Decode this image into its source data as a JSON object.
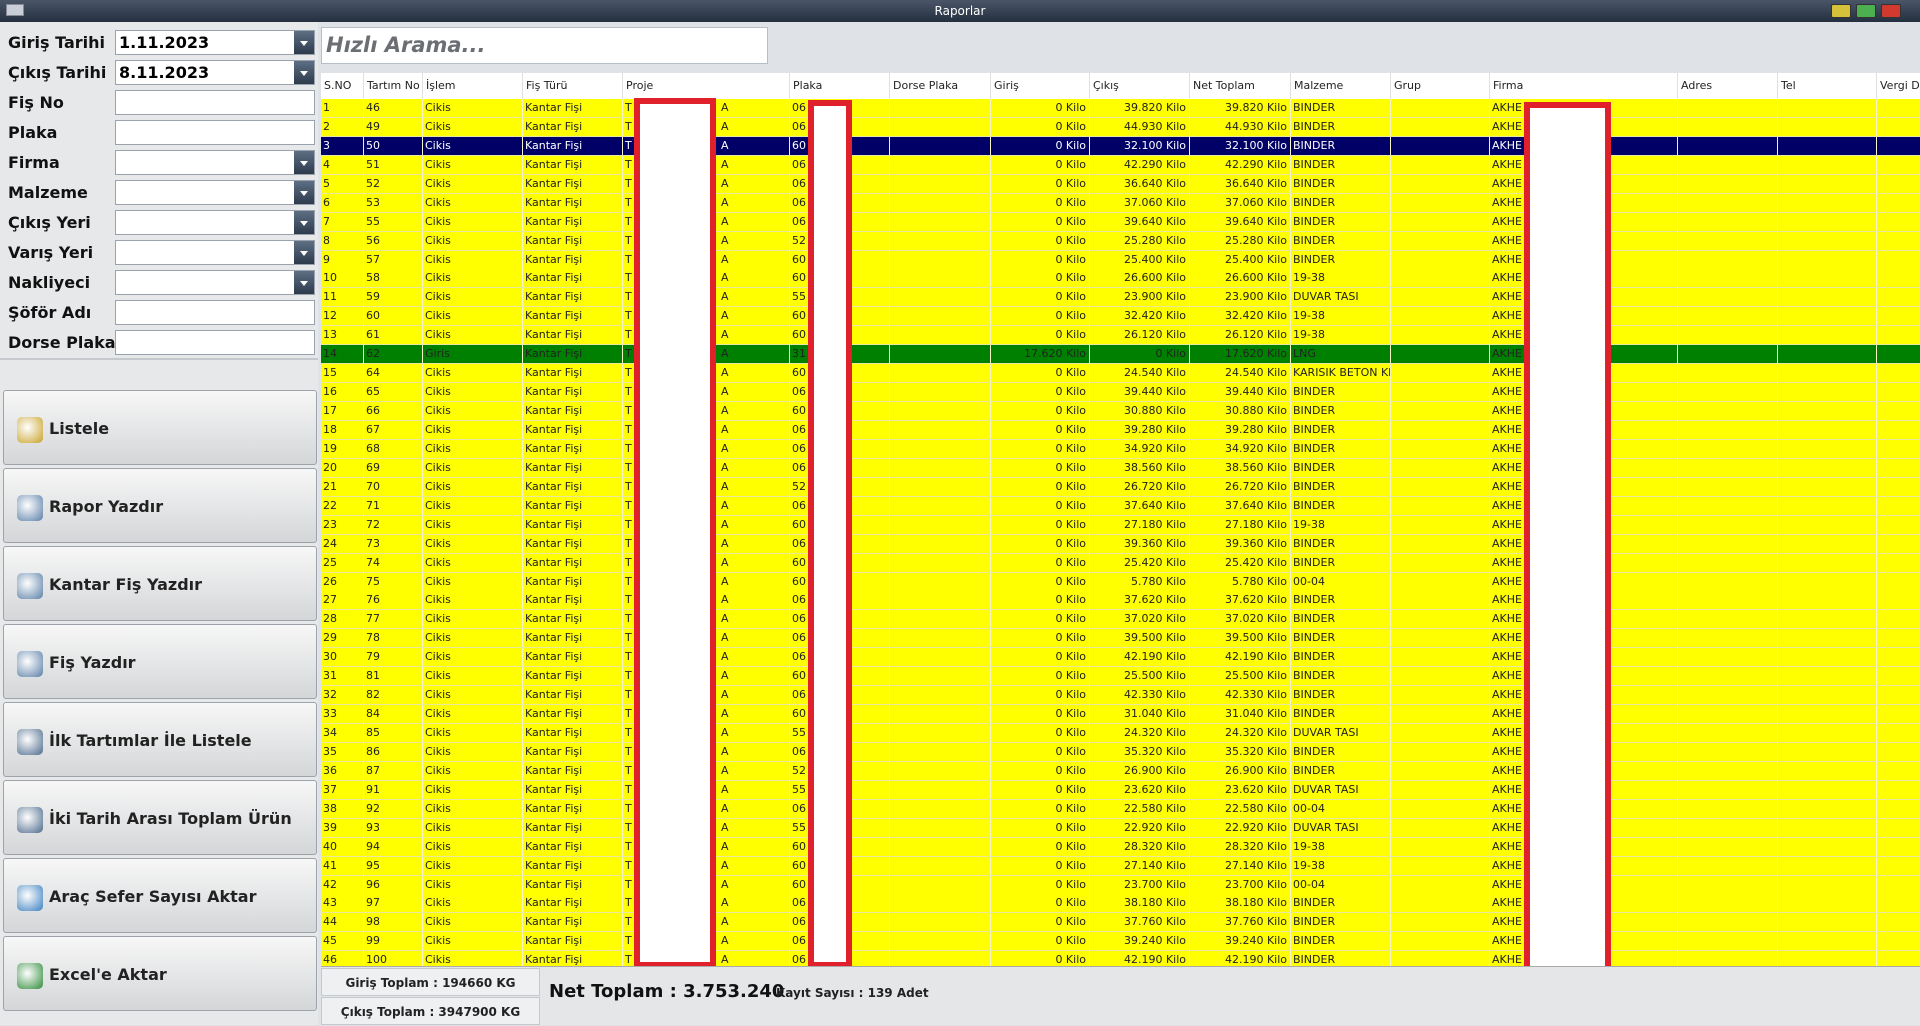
{
  "window": {
    "title": "Raporlar"
  },
  "filters": [
    {
      "label": "Giriş Tarihi",
      "value": "1.11.2023",
      "combo": true
    },
    {
      "label": "Çıkış Tarihi",
      "value": "8.11.2023",
      "combo": true
    },
    {
      "label": "Fiş No",
      "combo": false
    },
    {
      "label": "Plaka",
      "combo": false
    },
    {
      "label": "Firma",
      "combo": true
    },
    {
      "label": "Malzeme",
      "combo": true
    },
    {
      "label": "Çıkış Yeri",
      "combo": true
    },
    {
      "label": "Varış Yeri",
      "combo": true
    },
    {
      "label": "Nakliyeci",
      "combo": true
    },
    {
      "label": "Şöför Adı",
      "combo": false
    },
    {
      "label": "Dorse Plaka",
      "combo": false
    }
  ],
  "buttons": [
    "Listele",
    "Rapor Yazdır",
    "Kantar Fiş Yazdır",
    "Fiş Yazdır",
    "İlk Tartımlar İle Listele",
    "İki Tarih Arası Toplam Ürün",
    "Araç Sefer Sayısı Aktar",
    "Excel'e Aktar"
  ],
  "search": {
    "placeholder": "Hızlı Arama..."
  },
  "table": {
    "columns": [
      "S.NO",
      "Tartım No",
      "İşlem",
      "Fiş Türü",
      "Proje",
      "Plaka",
      "Dorse Plaka",
      "Giriş",
      "Çıkış",
      "Net Toplam",
      "Malzeme",
      "Grup",
      "Firma",
      "Adres",
      "Tel",
      "Vergi D"
    ],
    "selected_row": 2,
    "row_colors": {
      "default": "#ffff00",
      "selected": "#000066",
      "giris": "#008000"
    },
    "rows": [
      [
        1,
        46,
        "Cikis",
        "Kantar Fişi",
        [
          "T",
          "A"
        ],
        "06",
        "0 Kilo",
        "39.820 Kilo",
        "39.820 Kilo",
        "BINDER",
        "AKHE"
      ],
      [
        2,
        49,
        "Cikis",
        "Kantar Fişi",
        [
          "T",
          "A"
        ],
        "06",
        "0 Kilo",
        "44.930 Kilo",
        "44.930 Kilo",
        "BINDER",
        "AKHE"
      ],
      [
        3,
        50,
        "Cikis",
        "Kantar Fişi",
        [
          "T",
          "A"
        ],
        "60",
        "0 Kilo",
        "32.100 Kilo",
        "32.100 Kilo",
        "BINDER",
        "AKHE"
      ],
      [
        4,
        51,
        "Cikis",
        "Kantar Fişi",
        [
          "T",
          "A"
        ],
        "06",
        "0 Kilo",
        "42.290 Kilo",
        "42.290 Kilo",
        "BINDER",
        "AKHE"
      ],
      [
        5,
        52,
        "Cikis",
        "Kantar Fişi",
        [
          "T",
          "A"
        ],
        "06",
        "0 Kilo",
        "36.640 Kilo",
        "36.640 Kilo",
        "BINDER",
        "AKHE"
      ],
      [
        6,
        53,
        "Cikis",
        "Kantar Fişi",
        [
          "T",
          "A"
        ],
        "06",
        "0 Kilo",
        "37.060 Kilo",
        "37.060 Kilo",
        "BINDER",
        "AKHE"
      ],
      [
        7,
        55,
        "Cikis",
        "Kantar Fişi",
        [
          "T",
          "A"
        ],
        "06",
        "0 Kilo",
        "39.640 Kilo",
        "39.640 Kilo",
        "BINDER",
        "AKHE"
      ],
      [
        8,
        56,
        "Cikis",
        "Kantar Fişi",
        [
          "T",
          "A"
        ],
        "52",
        "0 Kilo",
        "25.280 Kilo",
        "25.280 Kilo",
        "BINDER",
        "AKHE"
      ],
      [
        9,
        57,
        "Cikis",
        "Kantar Fişi",
        [
          "T",
          "A"
        ],
        "60",
        "0 Kilo",
        "25.400 Kilo",
        "25.400 Kilo",
        "BINDER",
        "AKHE"
      ],
      [
        10,
        58,
        "Cikis",
        "Kantar Fişi",
        [
          "T",
          "A"
        ],
        "60",
        "0 Kilo",
        "26.600 Kilo",
        "26.600 Kilo",
        "19-38",
        "AKHE"
      ],
      [
        11,
        59,
        "Cikis",
        "Kantar Fişi",
        [
          "T",
          "A"
        ],
        "55",
        "0 Kilo",
        "23.900 Kilo",
        "23.900 Kilo",
        "DUVAR TASI",
        "AKHE"
      ],
      [
        12,
        60,
        "Cikis",
        "Kantar Fişi",
        [
          "T",
          "A"
        ],
        "60",
        "0 Kilo",
        "32.420 Kilo",
        "32.420 Kilo",
        "19-38",
        "AKHE"
      ],
      [
        13,
        61,
        "Cikis",
        "Kantar Fişi",
        [
          "T",
          "A"
        ],
        "60",
        "0 Kilo",
        "26.120 Kilo",
        "26.120 Kilo",
        "19-38",
        "AKHE"
      ],
      [
        14,
        62,
        "Giris",
        "Kantar Fişi",
        [
          "T",
          "A"
        ],
        "31",
        "17.620 Kilo",
        "0 Kilo",
        "17.620 Kilo",
        "LNG",
        "AKHE"
      ],
      [
        15,
        64,
        "Cikis",
        "Kantar Fişi",
        [
          "T",
          "A"
        ],
        "60",
        "0 Kilo",
        "24.540 Kilo",
        "24.540 Kilo",
        "KARISIK BETON KI",
        "AKHE"
      ],
      [
        16,
        65,
        "Cikis",
        "Kantar Fişi",
        [
          "T",
          "A"
        ],
        "06",
        "0 Kilo",
        "39.440 Kilo",
        "39.440 Kilo",
        "BINDER",
        "AKHE"
      ],
      [
        17,
        66,
        "Cikis",
        "Kantar Fişi",
        [
          "T",
          "A"
        ],
        "60",
        "0 Kilo",
        "30.880 Kilo",
        "30.880 Kilo",
        "BINDER",
        "AKHE"
      ],
      [
        18,
        67,
        "Cikis",
        "Kantar Fişi",
        [
          "T",
          "A"
        ],
        "06",
        "0 Kilo",
        "39.280 Kilo",
        "39.280 Kilo",
        "BINDER",
        "AKHE"
      ],
      [
        19,
        68,
        "Cikis",
        "Kantar Fişi",
        [
          "T",
          "A"
        ],
        "06",
        "0 Kilo",
        "34.920 Kilo",
        "34.920 Kilo",
        "BINDER",
        "AKHE"
      ],
      [
        20,
        69,
        "Cikis",
        "Kantar Fişi",
        [
          "T",
          "A"
        ],
        "06",
        "0 Kilo",
        "38.560 Kilo",
        "38.560 Kilo",
        "BINDER",
        "AKHE"
      ],
      [
        21,
        70,
        "Cikis",
        "Kantar Fişi",
        [
          "T",
          "A"
        ],
        "52",
        "0 Kilo",
        "26.720 Kilo",
        "26.720 Kilo",
        "BINDER",
        "AKHE"
      ],
      [
        22,
        71,
        "Cikis",
        "Kantar Fişi",
        [
          "T",
          "A"
        ],
        "06",
        "0 Kilo",
        "37.640 Kilo",
        "37.640 Kilo",
        "BINDER",
        "AKHE"
      ],
      [
        23,
        72,
        "Cikis",
        "Kantar Fişi",
        [
          "T",
          "A"
        ],
        "60",
        "0 Kilo",
        "27.180 Kilo",
        "27.180 Kilo",
        "19-38",
        "AKHE"
      ],
      [
        24,
        73,
        "Cikis",
        "Kantar Fişi",
        [
          "T",
          "A"
        ],
        "06",
        "0 Kilo",
        "39.360 Kilo",
        "39.360 Kilo",
        "BINDER",
        "AKHE"
      ],
      [
        25,
        74,
        "Cikis",
        "Kantar Fişi",
        [
          "T",
          "A"
        ],
        "60",
        "0 Kilo",
        "25.420 Kilo",
        "25.420 Kilo",
        "BINDER",
        "AKHE"
      ],
      [
        26,
        75,
        "Cikis",
        "Kantar Fişi",
        [
          "T",
          "A"
        ],
        "60",
        "0 Kilo",
        "5.780 Kilo",
        "5.780 Kilo",
        "00-04",
        "AKHE"
      ],
      [
        27,
        76,
        "Cikis",
        "Kantar Fişi",
        [
          "T",
          "A"
        ],
        "06",
        "0 Kilo",
        "37.620 Kilo",
        "37.620 Kilo",
        "BINDER",
        "AKHE"
      ],
      [
        28,
        77,
        "Cikis",
        "Kantar Fişi",
        [
          "T",
          "A"
        ],
        "06",
        "0 Kilo",
        "37.020 Kilo",
        "37.020 Kilo",
        "BINDER",
        "AKHE"
      ],
      [
        29,
        78,
        "Cikis",
        "Kantar Fişi",
        [
          "T",
          "A"
        ],
        "06",
        "0 Kilo",
        "39.500 Kilo",
        "39.500 Kilo",
        "BINDER",
        "AKHE"
      ],
      [
        30,
        79,
        "Cikis",
        "Kantar Fişi",
        [
          "T",
          "A"
        ],
        "06",
        "0 Kilo",
        "42.190 Kilo",
        "42.190 Kilo",
        "BINDER",
        "AKHE"
      ],
      [
        31,
        81,
        "Cikis",
        "Kantar Fişi",
        [
          "T",
          "A"
        ],
        "60",
        "0 Kilo",
        "25.500 Kilo",
        "25.500 Kilo",
        "BINDER",
        "AKHE"
      ],
      [
        32,
        82,
        "Cikis",
        "Kantar Fişi",
        [
          "T",
          "A"
        ],
        "06",
        "0 Kilo",
        "42.330 Kilo",
        "42.330 Kilo",
        "BINDER",
        "AKHE"
      ],
      [
        33,
        84,
        "Cikis",
        "Kantar Fişi",
        [
          "T",
          "A"
        ],
        "60",
        "0 Kilo",
        "31.040 Kilo",
        "31.040 Kilo",
        "BINDER",
        "AKHE"
      ],
      [
        34,
        85,
        "Cikis",
        "Kantar Fişi",
        [
          "T",
          "A"
        ],
        "55",
        "0 Kilo",
        "24.320 Kilo",
        "24.320 Kilo",
        "DUVAR TASI",
        "AKHE"
      ],
      [
        35,
        86,
        "Cikis",
        "Kantar Fişi",
        [
          "T",
          "A"
        ],
        "06",
        "0 Kilo",
        "35.320 Kilo",
        "35.320 Kilo",
        "BINDER",
        "AKHE"
      ],
      [
        36,
        87,
        "Cikis",
        "Kantar Fişi",
        [
          "T",
          "A"
        ],
        "52",
        "0 Kilo",
        "26.900 Kilo",
        "26.900 Kilo",
        "BINDER",
        "AKHE"
      ],
      [
        37,
        91,
        "Cikis",
        "Kantar Fişi",
        [
          "T",
          "A"
        ],
        "55",
        "0 Kilo",
        "23.620 Kilo",
        "23.620 Kilo",
        "DUVAR TASI",
        "AKHE"
      ],
      [
        38,
        92,
        "Cikis",
        "Kantar Fişi",
        [
          "T",
          "A"
        ],
        "06",
        "0 Kilo",
        "22.580 Kilo",
        "22.580 Kilo",
        "00-04",
        "AKHE"
      ],
      [
        39,
        93,
        "Cikis",
        "Kantar Fişi",
        [
          "T",
          "A"
        ],
        "55",
        "0 Kilo",
        "22.920 Kilo",
        "22.920 Kilo",
        "DUVAR TASI",
        "AKHE"
      ],
      [
        40,
        94,
        "Cikis",
        "Kantar Fişi",
        [
          "T",
          "A"
        ],
        "60",
        "0 Kilo",
        "28.320 Kilo",
        "28.320 Kilo",
        "19-38",
        "AKHE"
      ],
      [
        41,
        95,
        "Cikis",
        "Kantar Fişi",
        [
          "T",
          "A"
        ],
        "60",
        "0 Kilo",
        "27.140 Kilo",
        "27.140 Kilo",
        "19-38",
        "AKHE"
      ],
      [
        42,
        96,
        "Cikis",
        "Kantar Fişi",
        [
          "T",
          "A"
        ],
        "60",
        "0 Kilo",
        "23.700 Kilo",
        "23.700 Kilo",
        "00-04",
        "AKHE"
      ],
      [
        43,
        97,
        "Cikis",
        "Kantar Fişi",
        [
          "T",
          "A"
        ],
        "06",
        "0 Kilo",
        "38.180 Kilo",
        "38.180 Kilo",
        "BINDER",
        "AKHE"
      ],
      [
        44,
        98,
        "Cikis",
        "Kantar Fişi",
        [
          "T",
          "A"
        ],
        "06",
        "0 Kilo",
        "37.760 Kilo",
        "37.760 Kilo",
        "BINDER",
        "AKHE"
      ],
      [
        45,
        99,
        "Cikis",
        "Kantar Fişi",
        [
          "T",
          "A"
        ],
        "06",
        "0 Kilo",
        "39.240 Kilo",
        "39.240 Kilo",
        "BINDER",
        "AKHE"
      ],
      [
        46,
        100,
        "Cikis",
        "Kantar Fişi",
        [
          "T",
          "A"
        ],
        "06",
        "0 Kilo",
        "42.190 Kilo",
        "42.190 Kilo",
        "BINDER",
        "AKHE"
      ]
    ]
  },
  "footer": {
    "giris_toplam": "Giriş Toplam : 194660 KG",
    "cikis_toplam": "Çıkış Toplam : 3947900 KG",
    "net_toplam": "Net Toplam : 3.753.240",
    "kayit_sayisi": "Kayıt Sayısı : 139 Adet"
  }
}
